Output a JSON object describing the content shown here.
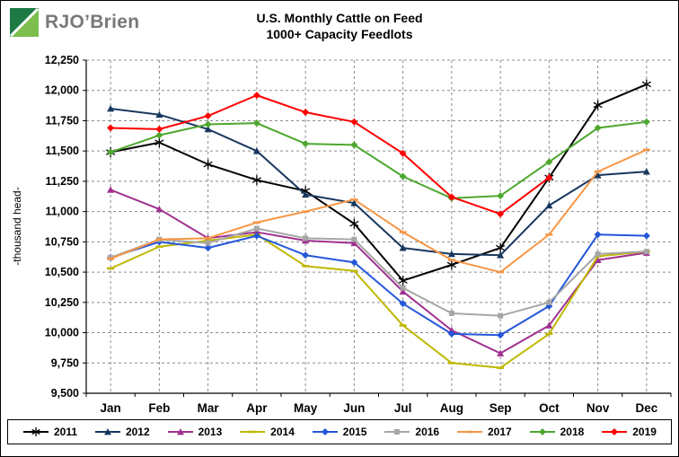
{
  "header": {
    "logo_text": "RJO’Brien",
    "logo_icon": "rjobrien-logo-icon",
    "logo_colors": {
      "dark": "#1d7a45",
      "light": "#7dbe4e",
      "text": "#77787b"
    }
  },
  "chart_data": {
    "type": "line",
    "title": "U.S. Monthly Cattle on Feed",
    "subtitle": "1000+ Capacity Feedlots",
    "ylabel": "-thousand head-",
    "xlabel": "",
    "categories": [
      "Jan",
      "Feb",
      "Mar",
      "Apr",
      "May",
      "Jun",
      "Jul",
      "Aug",
      "Sep",
      "Oct",
      "Nov",
      "Dec"
    ],
    "ylim": [
      9500,
      12250
    ],
    "ytick_step": 250,
    "grid": "dashed-horizontal-and-vertical",
    "legend_position": "bottom",
    "series": [
      {
        "name": "2011",
        "color": "#000000",
        "marker": "star",
        "values": [
          11490,
          11570,
          11390,
          11260,
          11170,
          10900,
          10430,
          10560,
          10700,
          11280,
          11880,
          12050
        ]
      },
      {
        "name": "2012",
        "color": "#17375e",
        "marker": "triangle",
        "values": [
          11850,
          11800,
          11680,
          11500,
          11140,
          11070,
          10700,
          10650,
          10640,
          11050,
          11300,
          11330
        ]
      },
      {
        "name": "2013",
        "color": "#a0308f",
        "marker": "triangle",
        "values": [
          11180,
          11020,
          10780,
          10830,
          10760,
          10740,
          10340,
          10020,
          9830,
          10060,
          10600,
          10660
        ]
      },
      {
        "name": "2014",
        "color": "#bfb800",
        "marker": "dash",
        "values": [
          10530,
          10710,
          10760,
          10810,
          10550,
          10510,
          10060,
          9750,
          9710,
          9990,
          10630,
          10670
        ]
      },
      {
        "name": "2015",
        "color": "#2457d9",
        "marker": "diamond",
        "values": [
          10620,
          10750,
          10700,
          10800,
          10640,
          10580,
          10240,
          9990,
          9980,
          10220,
          10810,
          10800
        ]
      },
      {
        "name": "2016",
        "color": "#a6a6a6",
        "marker": "square",
        "values": [
          10620,
          10770,
          10740,
          10860,
          10780,
          10770,
          10370,
          10160,
          10140,
          10250,
          10650,
          10670
        ]
      },
      {
        "name": "2017",
        "color": "#f79646",
        "marker": "dash",
        "values": [
          10610,
          10770,
          10780,
          10910,
          11000,
          11100,
          10830,
          10600,
          10500,
          10810,
          11330,
          11510
        ]
      },
      {
        "name": "2018",
        "color": "#4ea72e",
        "marker": "diamond",
        "values": [
          11490,
          11630,
          11720,
          11730,
          11560,
          11550,
          11290,
          11110,
          11130,
          11410,
          11690,
          11740
        ]
      },
      {
        "name": "2019",
        "color": "#ff0000",
        "marker": "diamond",
        "values": [
          11690,
          11680,
          11790,
          11960,
          11820,
          11740,
          11480,
          11120,
          10980,
          11280
        ]
      }
    ]
  }
}
